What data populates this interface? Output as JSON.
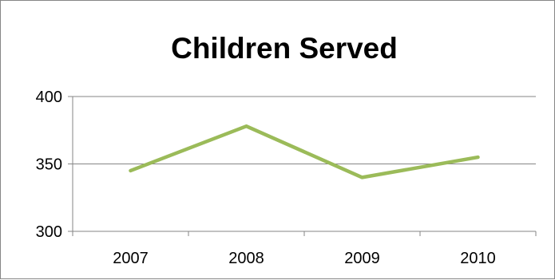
{
  "chart_data": {
    "type": "line",
    "title": "Children Served",
    "xlabel": "",
    "ylabel": "",
    "categories": [
      "2007",
      "2008",
      "2009",
      "2010"
    ],
    "series": [
      {
        "values": [
          345,
          378,
          340,
          355
        ],
        "color": "#9BBB59"
      }
    ],
    "ylim": [
      300,
      400
    ],
    "yticks": [
      300,
      350,
      400
    ],
    "grid": true,
    "legend": "none"
  }
}
